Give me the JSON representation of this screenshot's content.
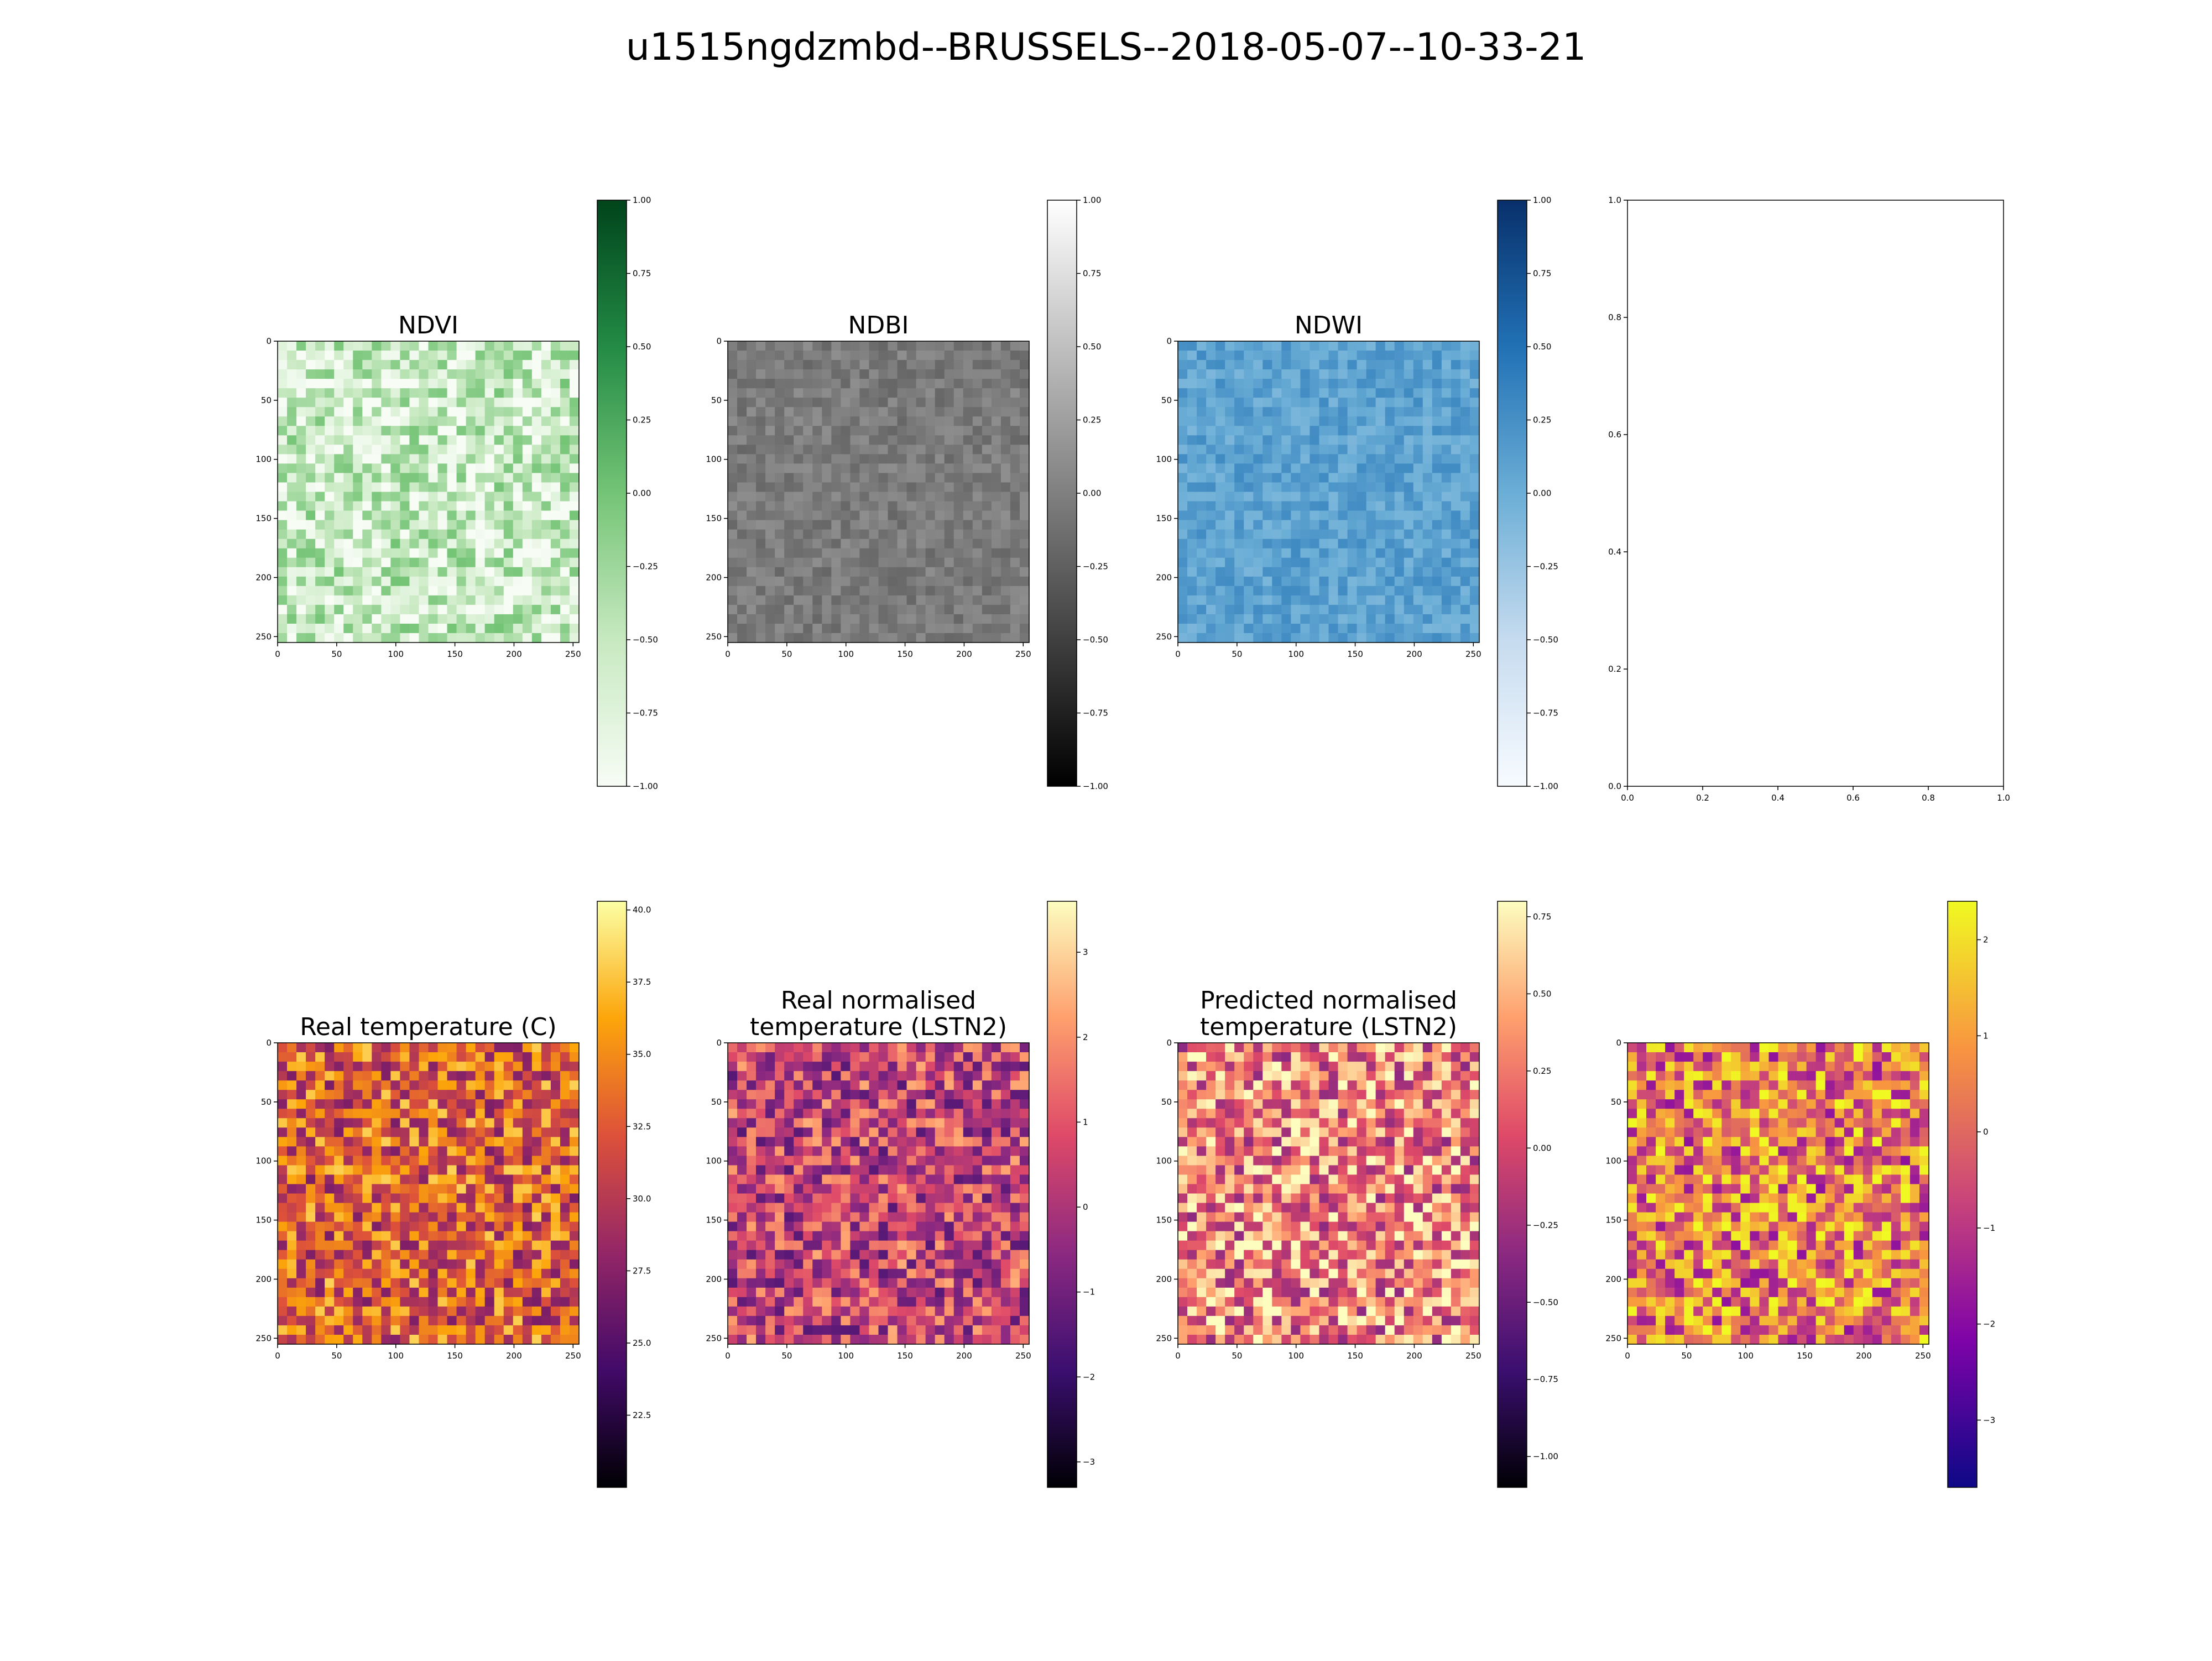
{
  "figure": {
    "title": "u1515ngdzmbd--BRUSSELS--2018-05-07--10-33-21"
  },
  "chart_data": [
    {
      "type": "heatmap",
      "title": "NDVI",
      "colormap": "Greens",
      "xlim": [
        0,
        255
      ],
      "ylim": [
        0,
        255
      ],
      "xticks": [
        "0",
        "50",
        "100",
        "150",
        "200",
        "250"
      ],
      "yticks": [
        "0",
        "50",
        "100",
        "150",
        "200",
        "250"
      ],
      "colorbar": {
        "min": -1.0,
        "max": 1.0,
        "ticks": [
          "1.00",
          "0.75",
          "0.50",
          "0.25",
          "0.00",
          "−0.25",
          "−0.50",
          "−0.75",
          "−1.00"
        ]
      }
    },
    {
      "type": "heatmap",
      "title": "NDBI",
      "colormap": "gray",
      "xlim": [
        0,
        255
      ],
      "ylim": [
        0,
        255
      ],
      "xticks": [
        "0",
        "50",
        "100",
        "150",
        "200",
        "250"
      ],
      "yticks": [
        "0",
        "50",
        "100",
        "150",
        "200",
        "250"
      ],
      "colorbar": {
        "min": -1.0,
        "max": 1.0,
        "ticks": [
          "1.00",
          "0.75",
          "0.50",
          "0.25",
          "0.00",
          "−0.25",
          "−0.50",
          "−0.75",
          "−1.00"
        ]
      }
    },
    {
      "type": "heatmap",
      "title": "NDWI",
      "colormap": "Blues",
      "xlim": [
        0,
        255
      ],
      "ylim": [
        0,
        255
      ],
      "xticks": [
        "0",
        "50",
        "100",
        "150",
        "200",
        "250"
      ],
      "yticks": [
        "0",
        "50",
        "100",
        "150",
        "200",
        "250"
      ],
      "colorbar": {
        "min": -1.0,
        "max": 1.0,
        "ticks": [
          "1.00",
          "0.75",
          "0.50",
          "0.25",
          "0.00",
          "−0.25",
          "−0.50",
          "−0.75",
          "−1.00"
        ]
      }
    },
    {
      "type": "empty",
      "xlim": [
        0,
        1
      ],
      "ylim": [
        0,
        1
      ],
      "xticks": [
        "0.0",
        "0.2",
        "0.4",
        "0.6",
        "0.8",
        "1.0"
      ],
      "yticks": [
        "1.0",
        "0.8",
        "0.6",
        "0.4",
        "0.2",
        "0.0"
      ]
    },
    {
      "type": "heatmap",
      "title": "Real temperature (C)",
      "colormap": "inferno",
      "xlim": [
        0,
        255
      ],
      "ylim": [
        0,
        255
      ],
      "xticks": [
        "0",
        "50",
        "100",
        "150",
        "200",
        "250"
      ],
      "yticks": [
        "0",
        "50",
        "100",
        "150",
        "200",
        "250"
      ],
      "colorbar": {
        "min": 20.0,
        "max": 40.3,
        "ticks": [
          "40.0",
          "37.5",
          "35.0",
          "32.5",
          "30.0",
          "27.5",
          "25.0",
          "22.5"
        ],
        "tick_values": [
          40.0,
          37.5,
          35.0,
          32.5,
          30.0,
          27.5,
          25.0,
          22.5
        ]
      }
    },
    {
      "type": "heatmap",
      "title": "Real normalised\ntemperature (LSTN2)",
      "colormap": "magma",
      "xlim": [
        0,
        255
      ],
      "ylim": [
        0,
        255
      ],
      "xticks": [
        "0",
        "50",
        "100",
        "150",
        "200",
        "250"
      ],
      "yticks": [
        "0",
        "50",
        "100",
        "150",
        "200",
        "250"
      ],
      "colorbar": {
        "min": -3.3,
        "max": 3.6,
        "ticks": [
          "3",
          "2",
          "1",
          "0",
          "−1",
          "−2",
          "−3"
        ],
        "tick_values": [
          3,
          2,
          1,
          0,
          -1,
          -2,
          -3
        ]
      }
    },
    {
      "type": "heatmap",
      "title": "Predicted normalised\ntemperature (LSTN2)",
      "colormap": "magma",
      "xlim": [
        0,
        255
      ],
      "ylim": [
        0,
        255
      ],
      "xticks": [
        "0",
        "50",
        "100",
        "150",
        "200",
        "250"
      ],
      "yticks": [
        "0",
        "50",
        "100",
        "150",
        "200",
        "250"
      ],
      "colorbar": {
        "min": -1.1,
        "max": 0.8,
        "ticks": [
          "0.75",
          "0.50",
          "0.25",
          "0.00",
          "−0.25",
          "−0.50",
          "−0.75",
          "−1.00"
        ],
        "tick_values": [
          0.75,
          0.5,
          0.25,
          0.0,
          -0.25,
          -0.5,
          -0.75,
          -1.0
        ]
      }
    },
    {
      "type": "heatmap",
      "title": "",
      "colormap": "plasma",
      "xlim": [
        0,
        255
      ],
      "ylim": [
        0,
        255
      ],
      "xticks": [
        "0",
        "50",
        "100",
        "150",
        "200",
        "250"
      ],
      "yticks": [
        "0",
        "50",
        "100",
        "150",
        "200",
        "250"
      ],
      "colorbar": {
        "min": -3.7,
        "max": 2.4,
        "ticks": [
          "2",
          "1",
          "0",
          "−1",
          "−2",
          "−3"
        ],
        "tick_values": [
          2,
          1,
          0,
          -1,
          -2,
          -3
        ]
      }
    }
  ]
}
